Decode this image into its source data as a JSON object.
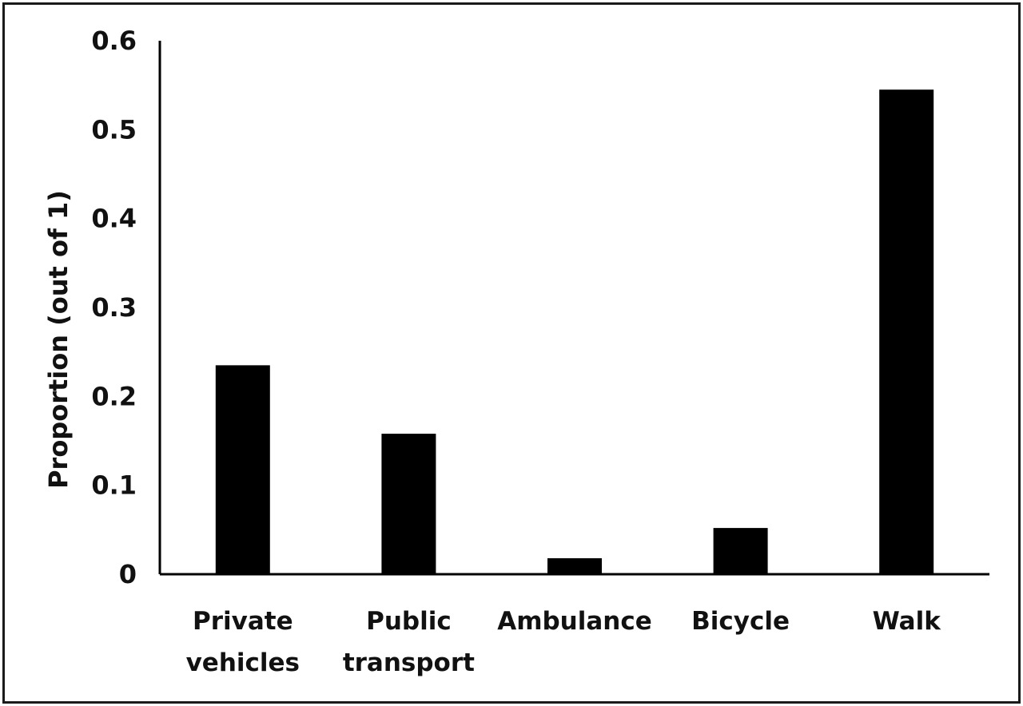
{
  "chart_data": {
    "type": "bar",
    "title": "",
    "xlabel": "",
    "ylabel": "Proportion (out of 1)",
    "categories": [
      [
        "Private",
        "vehicles"
      ],
      [
        "Public",
        "transport"
      ],
      [
        "Ambulance"
      ],
      [
        "Bicycle"
      ],
      [
        "Walk"
      ]
    ],
    "values": [
      0.235,
      0.158,
      0.018,
      0.052,
      0.545
    ],
    "ylim": [
      0,
      0.6
    ],
    "yticks": [
      "0",
      "0.1",
      "0.2",
      "0.3",
      "0.4",
      "0.5",
      "0.6"
    ],
    "grid": false,
    "legend": "none",
    "colors": {
      "bar": "#000000",
      "axis": "#000000",
      "text": "#111111"
    }
  }
}
